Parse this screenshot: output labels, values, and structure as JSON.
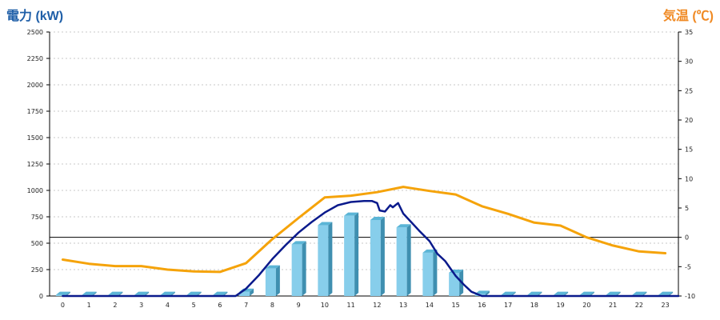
{
  "chart_data": {
    "type": "bar",
    "title": "",
    "left_axis_label": "電力 (kW)",
    "right_axis_label": "気温 (℃)",
    "categories": [
      "0",
      "1",
      "2",
      "3",
      "4",
      "5",
      "6",
      "7",
      "8",
      "9",
      "10",
      "11",
      "12",
      "13",
      "14",
      "15",
      "16",
      "17",
      "18",
      "19",
      "20",
      "21",
      "22",
      "23"
    ],
    "left_ylim": [
      0,
      2500
    ],
    "left_ticks": [
      0,
      250,
      500,
      750,
      1000,
      1250,
      1500,
      1750,
      2000,
      2250,
      2500
    ],
    "right_ylim": [
      -10,
      35
    ],
    "right_ticks": [
      -10,
      -5,
      0,
      5,
      10,
      15,
      20,
      25,
      30,
      35
    ],
    "grid": "horizontal dashed",
    "series": [
      {
        "type": "bar",
        "axis": "left",
        "values": [
          10,
          10,
          10,
          10,
          10,
          10,
          10,
          40,
          260,
          490,
          670,
          760,
          720,
          650,
          410,
          220,
          20,
          10,
          10,
          10,
          10,
          10,
          10,
          10
        ],
        "color": "#87ceeb"
      },
      {
        "type": "line",
        "axis": "left",
        "color": "#0a1a8c",
        "x": [
          0,
          6.6,
          7,
          7.5,
          8,
          8.5,
          9,
          9.5,
          10,
          10.5,
          11,
          11.5,
          11.8,
          12,
          12.1,
          12.3,
          12.5,
          12.6,
          12.8,
          13,
          13.3,
          13.6,
          14,
          14.3,
          14.6,
          15,
          15.3,
          15.6,
          16,
          23.5
        ],
        "y": [
          0,
          0,
          70,
          200,
          350,
          480,
          600,
          700,
          790,
          860,
          890,
          900,
          900,
          880,
          810,
          800,
          860,
          840,
          880,
          780,
          700,
          620,
          520,
          400,
          330,
          190,
          110,
          40,
          0,
          0
        ]
      },
      {
        "type": "line",
        "axis": "right",
        "color": "#f5a30a",
        "x": [
          0,
          1,
          2,
          3,
          4,
          5,
          6,
          7,
          8,
          9,
          10,
          11,
          12,
          13,
          14,
          15,
          16,
          17,
          18,
          19,
          20,
          21,
          22,
          23
        ],
        "y": [
          -3.8,
          -4.5,
          -4.9,
          -4.9,
          -5.5,
          -5.8,
          -5.9,
          -4.4,
          -0.3,
          3.3,
          6.8,
          7.1,
          7.7,
          8.6,
          7.9,
          7.3,
          5.3,
          4.0,
          2.5,
          2.0,
          0.0,
          -1.4,
          -2.4,
          -2.7
        ]
      }
    ]
  }
}
